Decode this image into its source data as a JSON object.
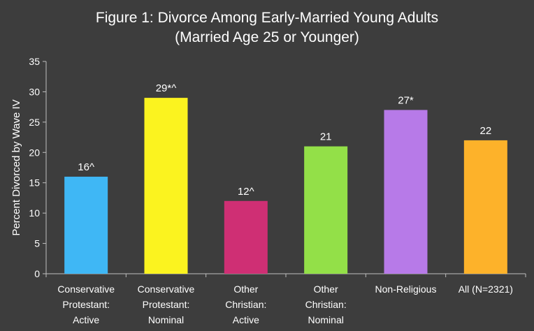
{
  "chart_data": {
    "type": "bar",
    "title": "Figure 1: Divorce Among Early-Married Young Adults",
    "subtitle": "(Married Age 25 or Younger)",
    "xlabel": "",
    "ylabel": "Percent Divorced by Wave IV",
    "ylim": [
      0,
      35
    ],
    "yticks": [
      0,
      5,
      10,
      15,
      20,
      25,
      30,
      35
    ],
    "grid": false,
    "legend": "none",
    "categories": [
      [
        "Conservative",
        "Protestant:",
        "Active"
      ],
      [
        "Conservative",
        "Protestant:",
        "Nominal"
      ],
      [
        "Other",
        "Christian:",
        "Active"
      ],
      [
        "Other",
        "Christian:",
        "Nominal"
      ],
      [
        "Non-Religious"
      ],
      [
        "All (N=2321)"
      ]
    ],
    "values": [
      16,
      29,
      12,
      21,
      27,
      22
    ],
    "data_labels": [
      "16^",
      "29*^",
      "12^",
      "21",
      "27*",
      "22"
    ],
    "colors": [
      "#3fb7f5",
      "#fbf31f",
      "#cf2f74",
      "#93e048",
      "#b77ae8",
      "#fdb22a"
    ]
  },
  "colors": {
    "background": "#3d3d3d",
    "axis": "#bfbfbf",
    "text": "#ffffff"
  }
}
